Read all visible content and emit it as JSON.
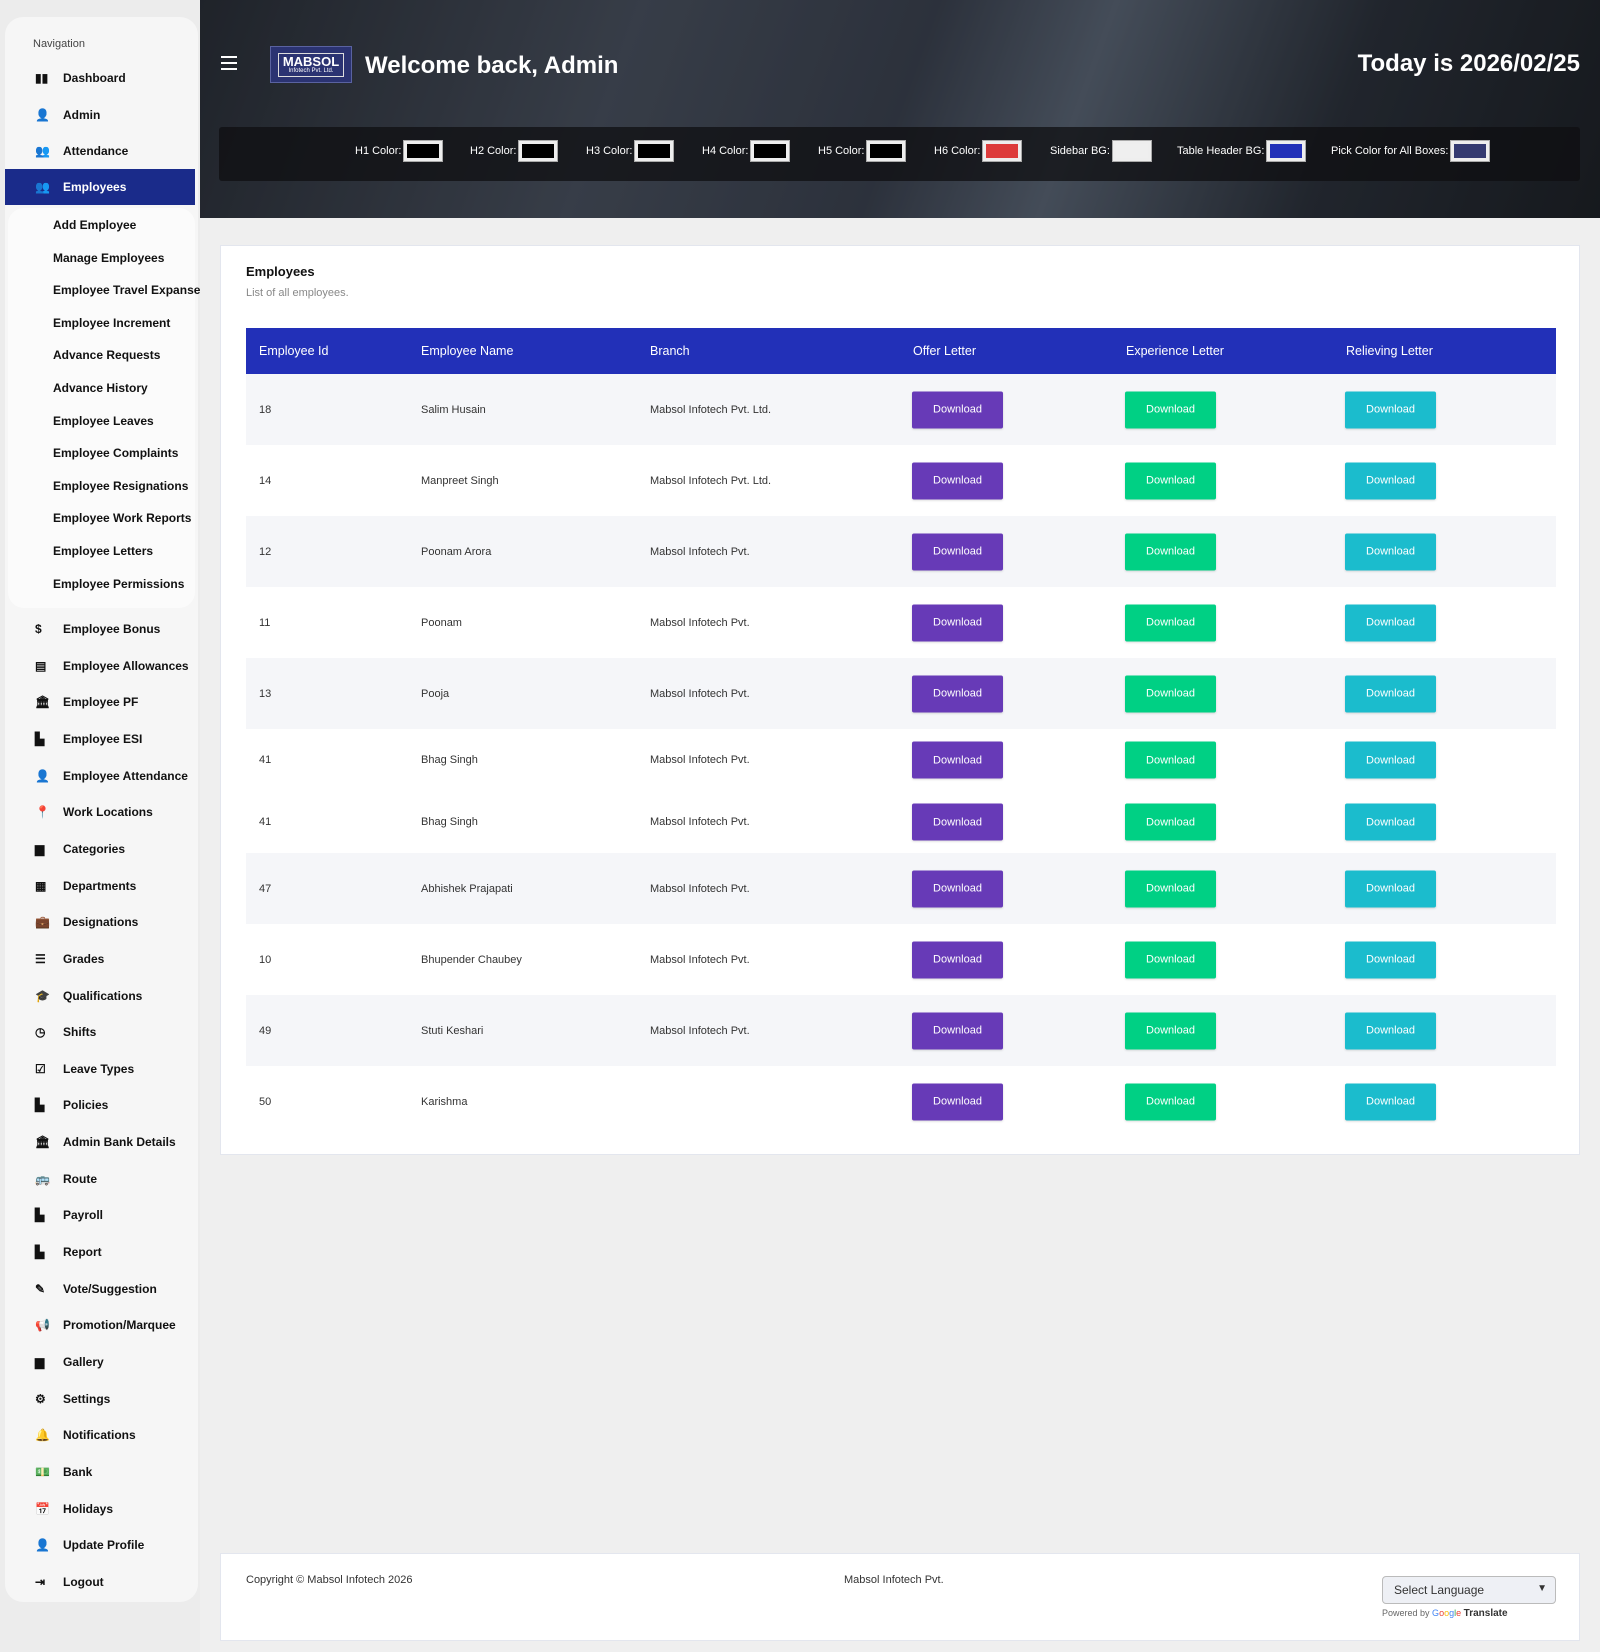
{
  "sidebar": {
    "nav_label": "Navigation",
    "items_top": [
      {
        "label": "Dashboard",
        "icon": "dashboard-icon",
        "glyph": "▮▮"
      },
      {
        "label": "Admin",
        "icon": "user-icon",
        "glyph": "👤"
      },
      {
        "label": "Attendance",
        "icon": "users-icon",
        "glyph": "👥"
      },
      {
        "label": "Employees",
        "icon": "users-icon",
        "glyph": "👥",
        "active": true
      }
    ],
    "submenu": [
      "Add Employee",
      "Manage Employees",
      "Employee Travel Expanse",
      "Employee Increment",
      "Advance Requests",
      "Advance History",
      "Employee Leaves",
      "Employee Complaints",
      "Employee Resignations",
      "Employee Work Reports",
      "Employee Letters",
      "Employee Permissions"
    ],
    "items_bottom": [
      {
        "label": "Employee Bonus",
        "icon": "dollar-icon",
        "glyph": "$"
      },
      {
        "label": "Employee Allowances",
        "icon": "list-box-icon",
        "glyph": "▤"
      },
      {
        "label": "Employee PF",
        "icon": "bank-icon",
        "glyph": "🏛"
      },
      {
        "label": "Employee ESI",
        "icon": "file-icon",
        "glyph": "▙"
      },
      {
        "label": "Employee Attendance",
        "icon": "user-check-icon",
        "glyph": "👤"
      },
      {
        "label": "Work Locations",
        "icon": "map-pin-icon",
        "glyph": "📍"
      },
      {
        "label": "Categories",
        "icon": "folder-icon",
        "glyph": "▆"
      },
      {
        "label": "Departments",
        "icon": "building-icon",
        "glyph": "▦"
      },
      {
        "label": "Designations",
        "icon": "briefcase-icon",
        "glyph": "💼"
      },
      {
        "label": "Grades",
        "icon": "list-icon",
        "glyph": "☰"
      },
      {
        "label": "Qualifications",
        "icon": "graduation-cap-icon",
        "glyph": "🎓"
      },
      {
        "label": "Shifts",
        "icon": "clock-icon",
        "glyph": "◷"
      },
      {
        "label": "Leave Types",
        "icon": "calendar-check-icon",
        "glyph": "☑"
      },
      {
        "label": "Policies",
        "icon": "file-icon",
        "glyph": "▙"
      },
      {
        "label": "Admin Bank Details",
        "icon": "bank-icon",
        "glyph": "🏛"
      },
      {
        "label": "Route",
        "icon": "bus-icon",
        "glyph": "🚌"
      },
      {
        "label": "Payroll",
        "icon": "file-icon",
        "glyph": "▙"
      },
      {
        "label": "Report",
        "icon": "report-icon",
        "glyph": "▙"
      },
      {
        "label": "Vote/Suggestion",
        "icon": "ballot-icon",
        "glyph": "✎"
      },
      {
        "label": "Promotion/Marquee",
        "icon": "megaphone-icon",
        "glyph": "📢"
      },
      {
        "label": "Gallery",
        "icon": "image-icon",
        "glyph": "▆"
      },
      {
        "label": "Settings",
        "icon": "gear-icon",
        "glyph": "⚙"
      },
      {
        "label": "Notifications",
        "icon": "bell-icon",
        "glyph": "🔔"
      },
      {
        "label": "Bank",
        "icon": "money-icon",
        "glyph": "💵"
      },
      {
        "label": "Holidays",
        "icon": "calendar-star-icon",
        "glyph": "📅"
      },
      {
        "label": "Update Profile",
        "icon": "user-icon",
        "glyph": "👤"
      },
      {
        "label": "Logout",
        "icon": "logout-icon",
        "glyph": "⇥"
      }
    ]
  },
  "header": {
    "logo_line1": "MABSOL",
    "logo_line2": "Infotech Pvt. Ltd.",
    "welcome": "Welcome back, Admin",
    "today": "Today is 2026/02/25",
    "color_pickers": [
      {
        "label": "H1 Color:",
        "color": "#000000"
      },
      {
        "label": "H2 Color:",
        "color": "#000000"
      },
      {
        "label": "H3 Color:",
        "color": "#000000"
      },
      {
        "label": "H4 Color:",
        "color": "#000000"
      },
      {
        "label": "H5 Color:",
        "color": "#000000"
      },
      {
        "label": "H6 Color:",
        "color": "#dd3b3b"
      },
      {
        "label": "Sidebar BG:",
        "color": "#efefef"
      },
      {
        "label": "Table Header BG:",
        "color": "#2230b8"
      },
      {
        "label": "Pick Color for All Boxes:",
        "color": "#343a70"
      }
    ]
  },
  "main": {
    "title": "Employees",
    "subtitle": "List of all employees.",
    "columns": [
      "Employee Id",
      "Employee Name",
      "Branch",
      "Offer Letter",
      "Experience Letter",
      "Relieving Letter"
    ],
    "button_label": "Download",
    "button_colors": {
      "offer": "#673ab7",
      "experience": "#00d084",
      "relieving": "#1bbccd"
    },
    "rows": [
      {
        "id": "18",
        "name": "Salim Husain",
        "branch": "Mabsol Infotech Pvt. Ltd."
      },
      {
        "id": "14",
        "name": "Manpreet Singh",
        "branch": "Mabsol Infotech Pvt. Ltd."
      },
      {
        "id": "12",
        "name": "Poonam Arora",
        "branch": "Mabsol Infotech Pvt."
      },
      {
        "id": "11",
        "name": "Poonam",
        "branch": "Mabsol Infotech Pvt."
      },
      {
        "id": "13",
        "name": "Pooja",
        "branch": "Mabsol Infotech Pvt."
      },
      {
        "id": "41",
        "name": "Bhag Singh",
        "branch": "Mabsol Infotech Pvt."
      },
      {
        "id": "41",
        "name": "Bhag Singh",
        "branch": "Mabsol Infotech Pvt."
      },
      {
        "id": "47",
        "name": "Abhishek Prajapati",
        "branch": "Mabsol Infotech Pvt."
      },
      {
        "id": "10",
        "name": "Bhupender Chaubey",
        "branch": "Mabsol Infotech Pvt."
      },
      {
        "id": "49",
        "name": "Stuti Keshari",
        "branch": "Mabsol Infotech Pvt."
      },
      {
        "id": "50",
        "name": "Karishma",
        "branch": ""
      }
    ]
  },
  "footer": {
    "copyright": "Copyright © Mabsol Infotech 2026",
    "company": "Mabsol Infotech Pvt.",
    "language_select": "Select Language",
    "powered_by": "Powered by",
    "translate": "Translate"
  }
}
